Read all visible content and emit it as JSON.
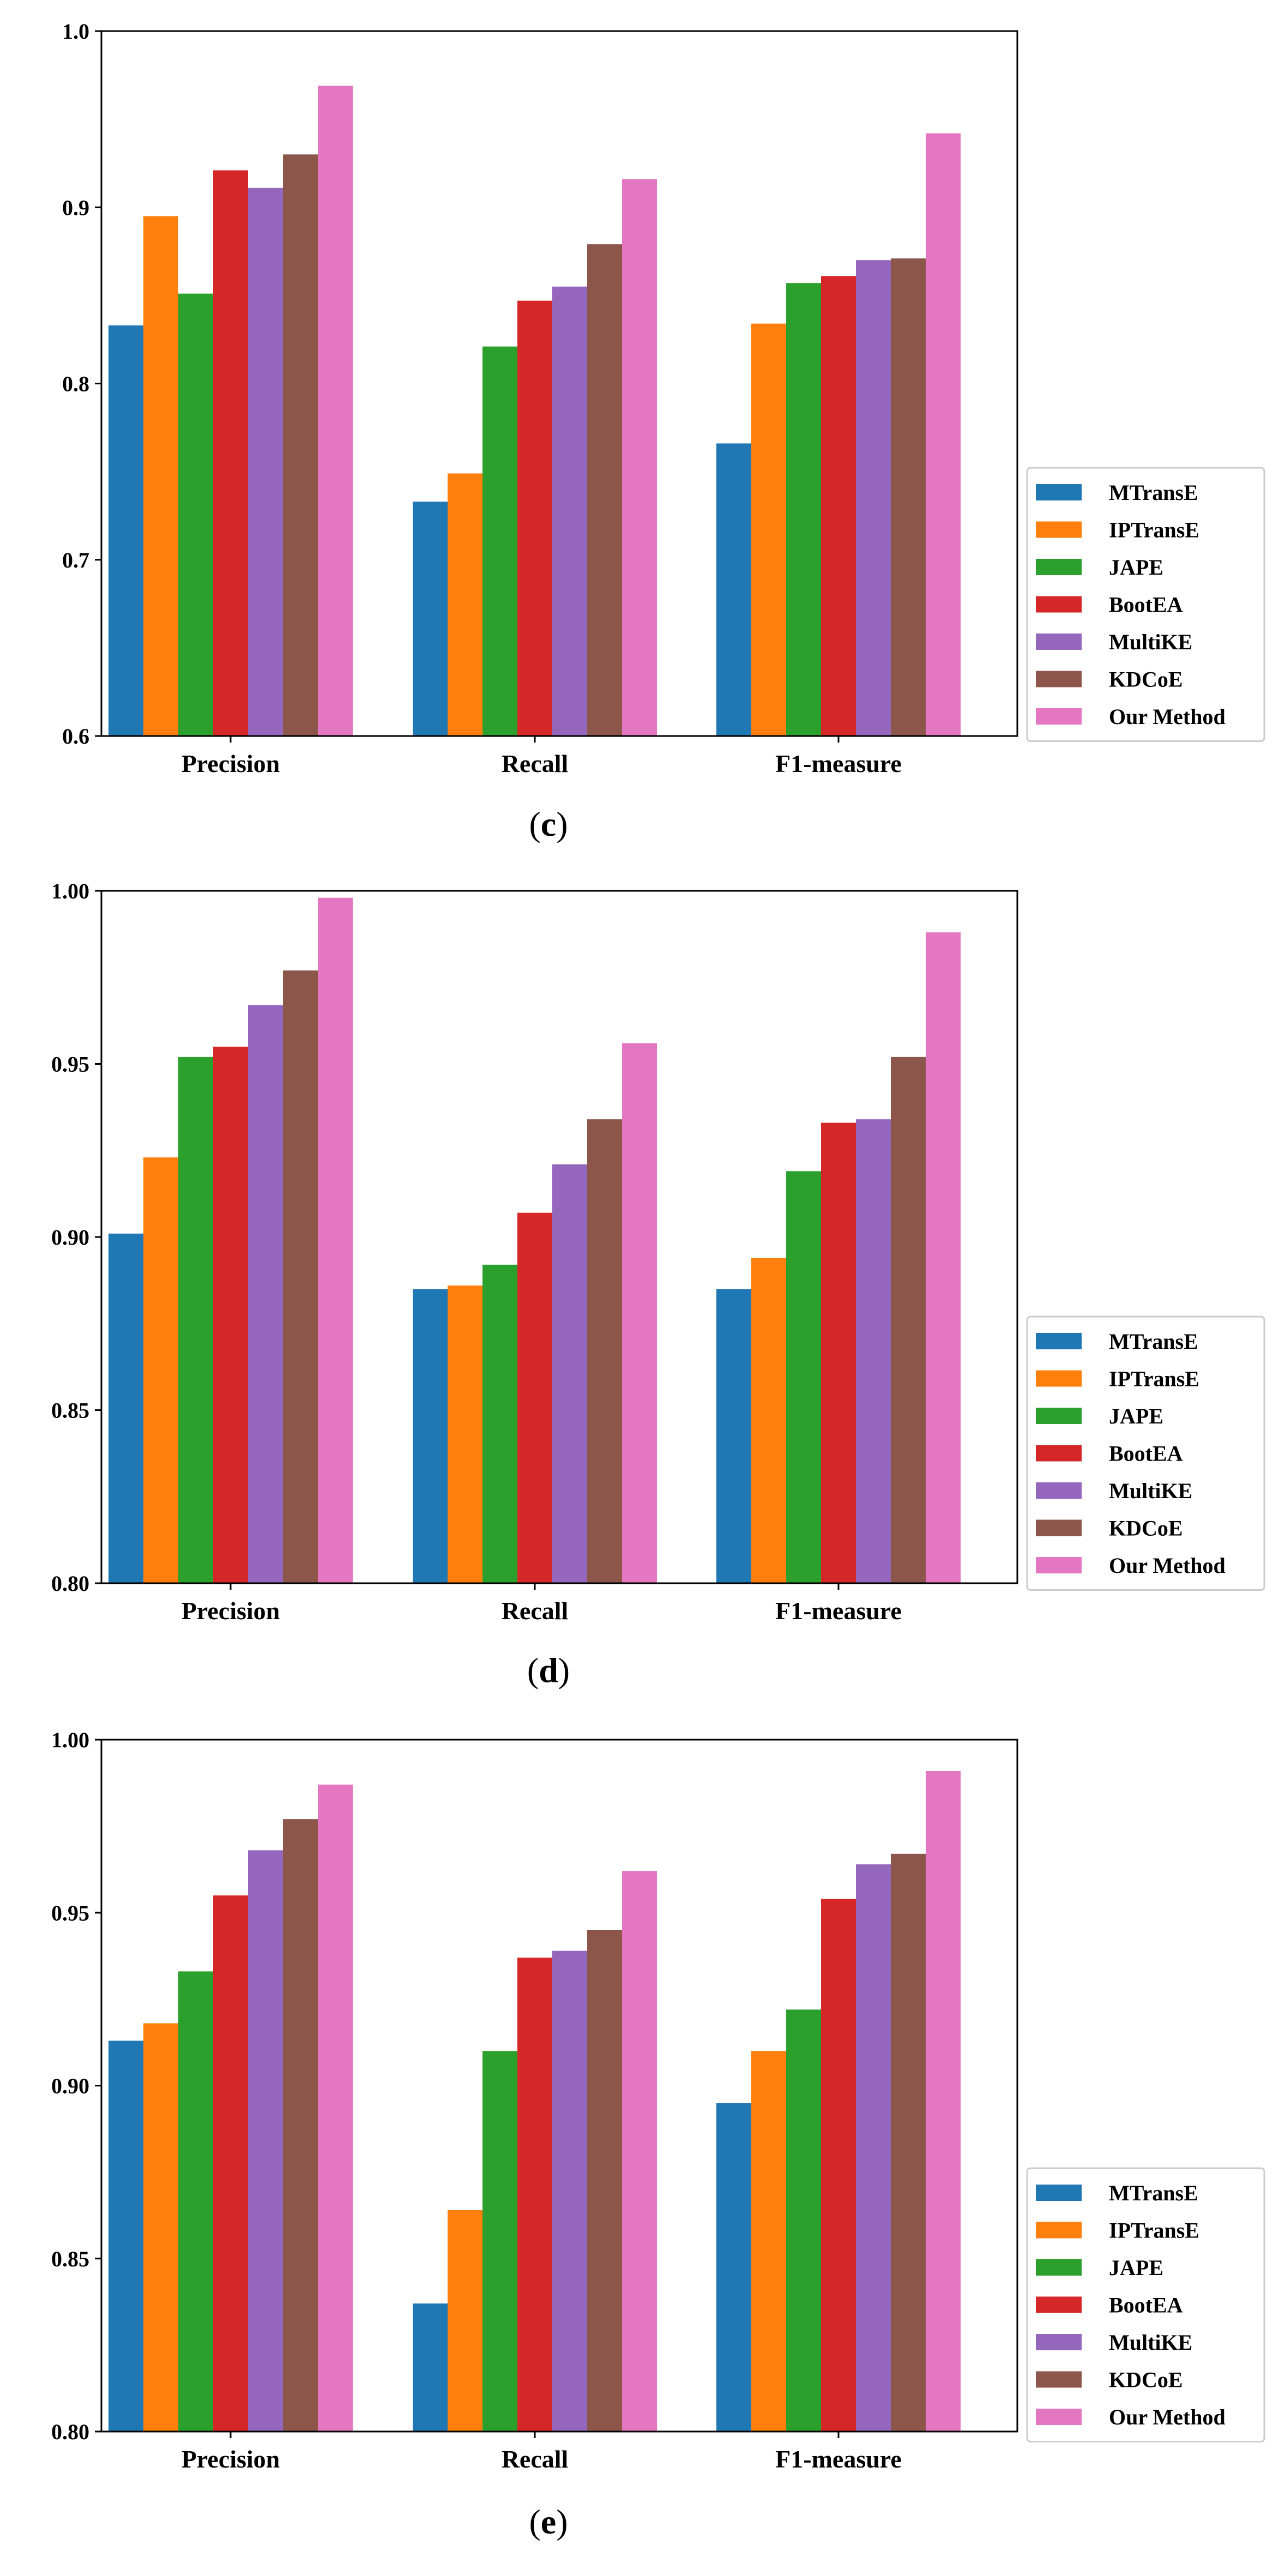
{
  "colors": {
    "MTransE": "#1f77b4",
    "IPTransE": "#ff7f0e",
    "JAPE": "#2ca02c",
    "BootEA": "#d62728",
    "MultiKE": "#9467bd",
    "KDCoE": "#8c564b",
    "Our Method": "#e377c2"
  },
  "chart_data": [
    {
      "type": "bar",
      "panel_label": "c",
      "categories": [
        "Precision",
        "Recall",
        "F1-measure"
      ],
      "ylim": [
        0.6,
        1.0
      ],
      "yticks": [
        0.6,
        0.7,
        0.8,
        0.9,
        1.0
      ],
      "ytick_labels": [
        "0.6",
        "0.7",
        "0.8",
        "0.9",
        "1.0"
      ],
      "legend_position": "right",
      "series": [
        {
          "name": "MTransE",
          "values": [
            0.833,
            0.733,
            0.766
          ]
        },
        {
          "name": "IPTransE",
          "values": [
            0.895,
            0.749,
            0.834
          ]
        },
        {
          "name": "JAPE",
          "values": [
            0.851,
            0.821,
            0.857
          ]
        },
        {
          "name": "BootEA",
          "values": [
            0.921,
            0.847,
            0.861
          ]
        },
        {
          "name": "MultiKE",
          "values": [
            0.911,
            0.855,
            0.87
          ]
        },
        {
          "name": "KDCoE",
          "values": [
            0.93,
            0.879,
            0.871
          ]
        },
        {
          "name": "Our Method",
          "values": [
            0.969,
            0.916,
            0.942
          ]
        }
      ]
    },
    {
      "type": "bar",
      "panel_label": "d",
      "categories": [
        "Precision",
        "Recall",
        "F1-measure"
      ],
      "ylim": [
        0.8,
        1.0
      ],
      "yticks": [
        0.8,
        0.85,
        0.9,
        0.95,
        1.0
      ],
      "ytick_labels": [
        "0.80",
        "0.85",
        "0.90",
        "0.95",
        "1.00"
      ],
      "legend_position": "right",
      "series": [
        {
          "name": "MTransE",
          "values": [
            0.901,
            0.885,
            0.885
          ]
        },
        {
          "name": "IPTransE",
          "values": [
            0.923,
            0.886,
            0.894
          ]
        },
        {
          "name": "JAPE",
          "values": [
            0.952,
            0.892,
            0.919
          ]
        },
        {
          "name": "BootEA",
          "values": [
            0.955,
            0.907,
            0.933
          ]
        },
        {
          "name": "MultiKE",
          "values": [
            0.967,
            0.921,
            0.934
          ]
        },
        {
          "name": "KDCoE",
          "values": [
            0.977,
            0.934,
            0.952
          ]
        },
        {
          "name": "Our Method",
          "values": [
            0.998,
            0.956,
            0.988
          ]
        }
      ]
    },
    {
      "type": "bar",
      "panel_label": "e",
      "categories": [
        "Precision",
        "Recall",
        "F1-measure"
      ],
      "ylim": [
        0.8,
        1.0
      ],
      "yticks": [
        0.8,
        0.85,
        0.9,
        0.95,
        1.0
      ],
      "ytick_labels": [
        "0.80",
        "0.85",
        "0.90",
        "0.95",
        "1.00"
      ],
      "legend_position": "right",
      "series": [
        {
          "name": "MTransE",
          "values": [
            0.913,
            0.837,
            0.895
          ]
        },
        {
          "name": "IPTransE",
          "values": [
            0.918,
            0.864,
            0.91
          ]
        },
        {
          "name": "JAPE",
          "values": [
            0.933,
            0.91,
            0.922
          ]
        },
        {
          "name": "BootEA",
          "values": [
            0.955,
            0.937,
            0.954
          ]
        },
        {
          "name": "MultiKE",
          "values": [
            0.968,
            0.939,
            0.964
          ]
        },
        {
          "name": "KDCoE",
          "values": [
            0.977,
            0.945,
            0.967
          ]
        },
        {
          "name": "Our Method",
          "values": [
            0.987,
            0.962,
            0.991
          ]
        }
      ]
    }
  ]
}
